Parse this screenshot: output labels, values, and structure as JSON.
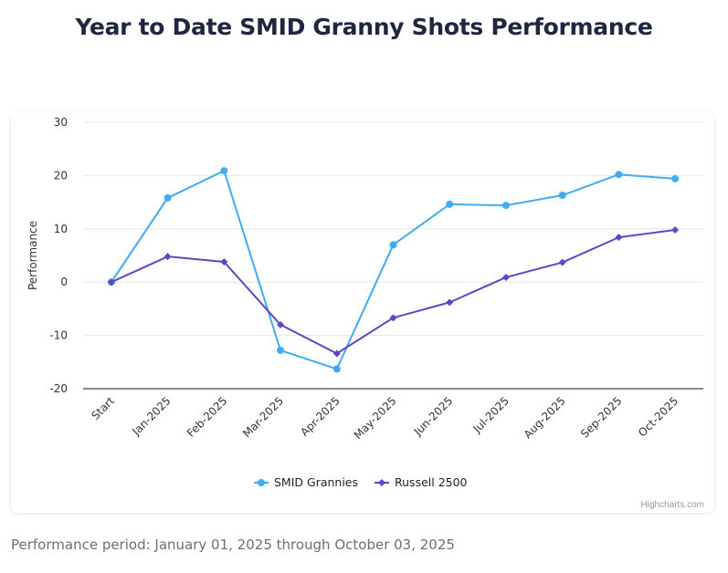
{
  "page": {
    "title": "Year to Date SMID Granny Shots Performance",
    "footnote": "Performance period: January 01, 2025 through October 03, 2025",
    "credit": "Highcharts.com"
  },
  "chart_data": {
    "type": "line",
    "title": "Year to Date SMID Granny Shots Performance",
    "xlabel": "",
    "ylabel": "Performance",
    "categories": [
      "Start",
      "Jan-2025",
      "Feb-2025",
      "Mar-2025",
      "Apr-2025",
      "May-2025",
      "Jun-2025",
      "Jul-2025",
      "Aug-2025",
      "Sep-2025",
      "Oct-2025"
    ],
    "ylim": [
      -20,
      30
    ],
    "yticks": [
      30,
      20,
      10,
      0,
      -10,
      -20
    ],
    "grid": true,
    "legend_position": "bottom-center",
    "series": [
      {
        "name": "SMID Grannies",
        "color": "#40aaf5",
        "marker": "circle",
        "values": [
          0,
          15.8,
          20.9,
          -12.8,
          -16.3,
          7.0,
          14.6,
          14.4,
          16.3,
          20.2,
          19.4
        ]
      },
      {
        "name": "Russell 2500",
        "color": "#5a48c4",
        "marker": "diamond",
        "values": [
          0,
          4.8,
          3.8,
          -8.0,
          -13.4,
          -6.7,
          -3.8,
          0.9,
          3.7,
          8.4,
          9.8
        ]
      }
    ]
  }
}
